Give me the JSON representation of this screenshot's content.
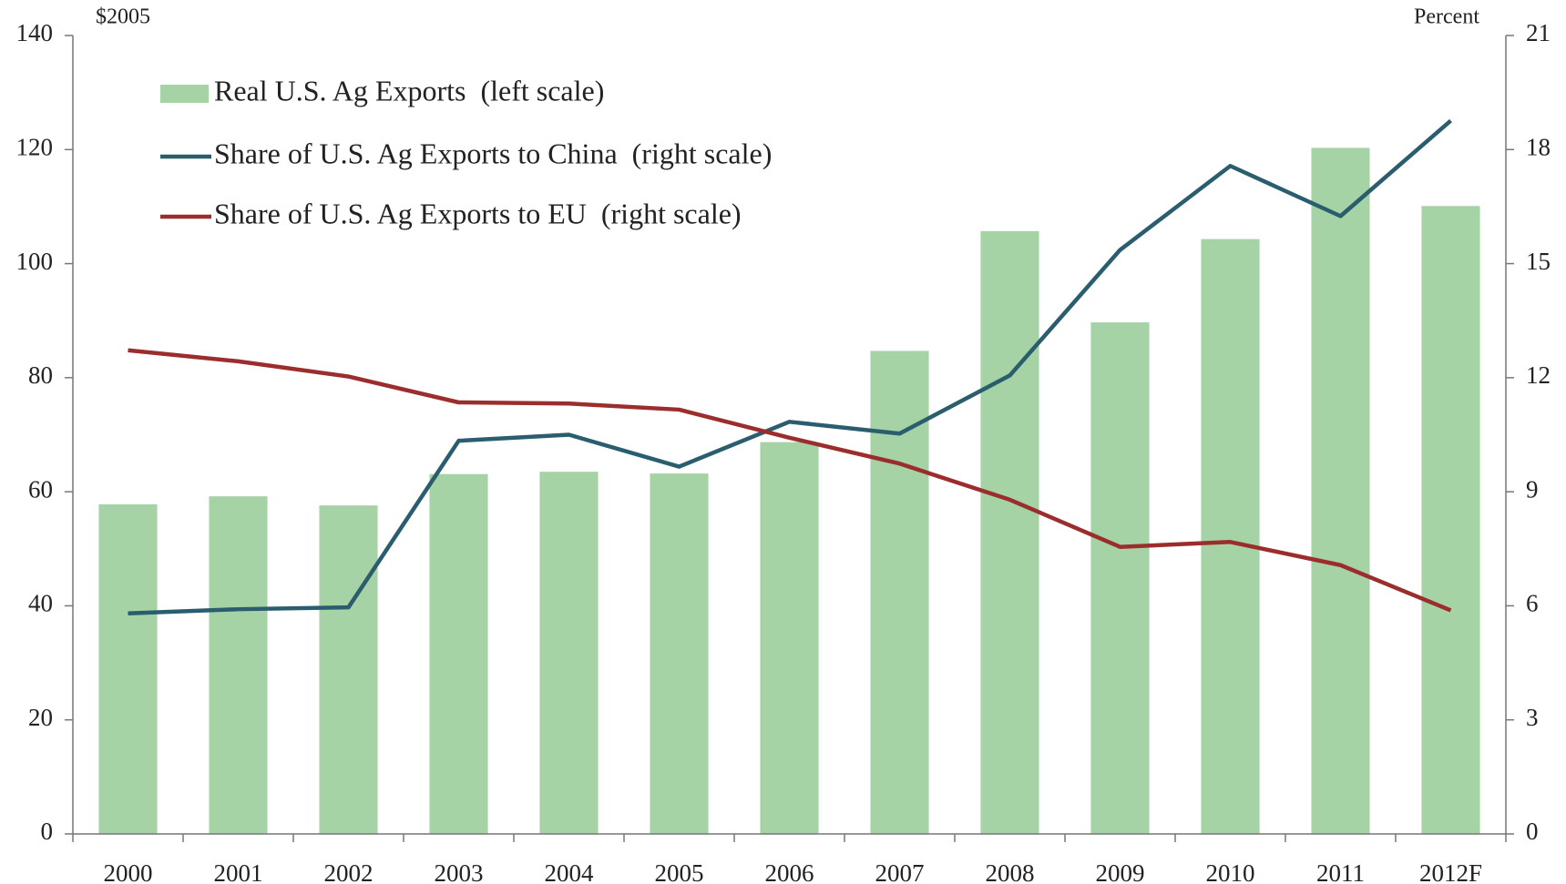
{
  "chart_data": {
    "type": "bar_line",
    "y_label": "$2005",
    "y2_label": "Percent",
    "categories": [
      "2000",
      "2001",
      "2002",
      "2003",
      "2004",
      "2005",
      "2006",
      "2007",
      "2008",
      "2009",
      "2010",
      "2011",
      "2012F"
    ],
    "series": [
      {
        "name": "Real U.S. Ag Exports  (left scale)",
        "type": "bar",
        "color": "#a6d3a6",
        "axis": "y",
        "values": [
          57.8,
          59.2,
          57.6,
          63.1,
          63.5,
          63.2,
          68.7,
          84.7,
          105.7,
          89.7,
          104.3,
          120.3,
          110.1
        ]
      },
      {
        "name": "Share of U.S. Ag Exports to China  (right scale)",
        "type": "line",
        "color": "#2a5d6e",
        "axis": "y2",
        "values": [
          5.8,
          5.91,
          5.96,
          10.34,
          10.5,
          9.66,
          10.84,
          10.53,
          12.06,
          15.36,
          17.57,
          16.25,
          18.76
        ]
      },
      {
        "name": "Share of U.S. Ag Exports to EU  (right scale)",
        "type": "line",
        "color": "#9b2d2d",
        "axis": "y2",
        "values": [
          12.72,
          12.43,
          12.03,
          11.35,
          11.32,
          11.16,
          10.42,
          9.74,
          8.79,
          7.55,
          7.68,
          7.07,
          5.88
        ]
      }
    ],
    "ylim": [
      0,
      140
    ],
    "yticks": [
      0,
      20,
      40,
      60,
      80,
      100,
      120,
      140
    ],
    "y2lim": [
      0,
      21
    ],
    "y2ticks": [
      0,
      3,
      6,
      9,
      12,
      15,
      18,
      21
    ],
    "legend": "upper left"
  }
}
